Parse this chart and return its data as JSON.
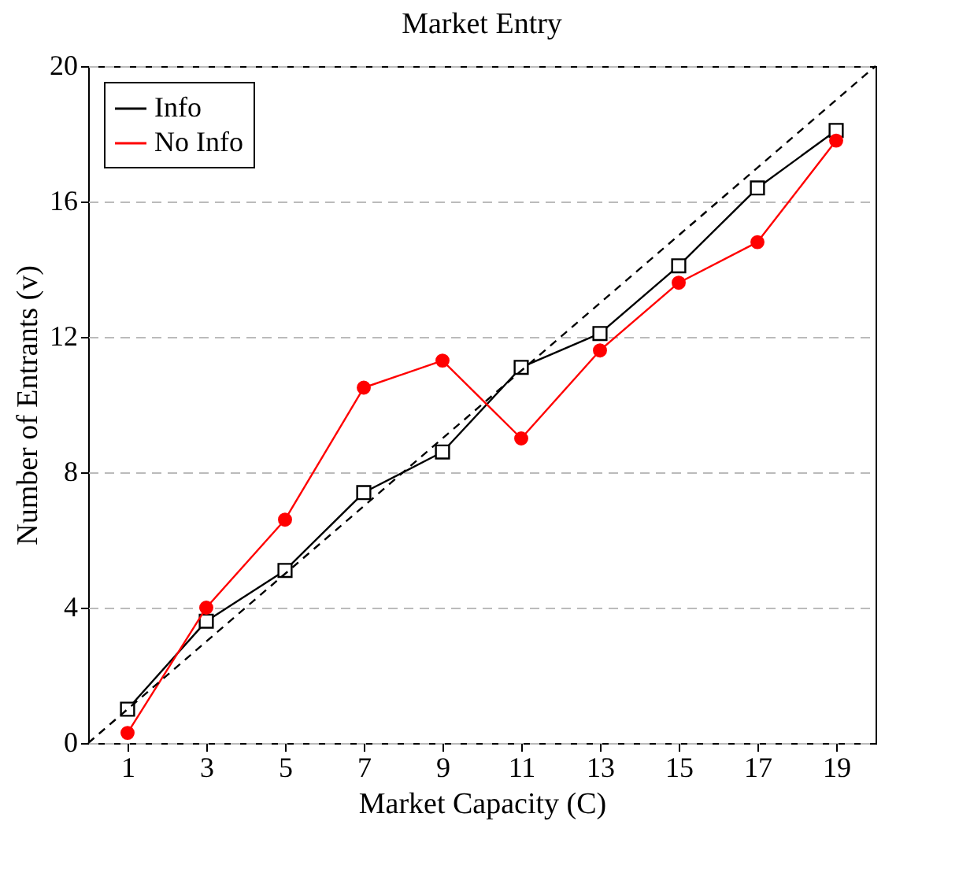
{
  "chart_data": {
    "type": "line",
    "title": "Market Entry",
    "xlabel": "Market Capacity (C)",
    "ylabel": "Number of Entrants (v)",
    "x": [
      1,
      3,
      5,
      7,
      9,
      11,
      13,
      15,
      17,
      19
    ],
    "series": [
      {
        "name": "Info",
        "color": "#000000",
        "marker": "square",
        "values": [
          1.0,
          3.6,
          5.1,
          7.4,
          8.6,
          11.1,
          12.1,
          14.1,
          16.4,
          18.1
        ]
      },
      {
        "name": "No Info",
        "color": "#ff0000",
        "marker": "circle",
        "values": [
          0.3,
          4.0,
          6.6,
          10.5,
          11.3,
          9.0,
          11.6,
          13.6,
          14.8,
          17.8
        ]
      },
      {
        "type": "line",
        "color": "#000000",
        "line_style": "dashed",
        "marker": "none",
        "x": [
          0,
          20
        ],
        "values": [
          0,
          20
        ]
      }
    ],
    "xlim": [
      0,
      20
    ],
    "xticks": [
      1,
      3,
      5,
      7,
      9,
      11,
      13,
      15,
      17,
      19
    ],
    "ylim": [
      0,
      20
    ],
    "yticks": [
      0,
      4,
      8,
      12,
      16,
      20
    ],
    "grid": "y",
    "legend": "top left",
    "line_style": "solid"
  }
}
